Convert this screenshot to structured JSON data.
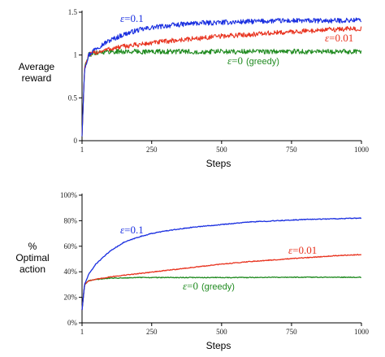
{
  "colors": {
    "eps_0_1": "#1a2fe0",
    "eps_0_01": "#e8321e",
    "eps_0": "#1f8a1f",
    "axis": "#000000"
  },
  "chart_data": [
    {
      "type": "line",
      "ylabel": "Average\nreward",
      "xlabel": "Steps",
      "xlim": [
        1,
        1000
      ],
      "ylim": [
        0,
        1.5
      ],
      "x_ticks": [
        1,
        250,
        500,
        750,
        1000
      ],
      "x_tick_labels": [
        "1",
        "250",
        "500",
        "750",
        "1000"
      ],
      "y_ticks": [
        0,
        0.5,
        1,
        1.5
      ],
      "y_tick_labels": [
        "0",
        "0.5",
        "1",
        "1.5"
      ],
      "grid": false,
      "series": [
        {
          "name": "ε=0.1",
          "annotation_var": "ε",
          "annotation_val": "=0.1",
          "color_key": "eps_0_1",
          "x": [
            1,
            10,
            25,
            50,
            100,
            150,
            200,
            250,
            300,
            400,
            500,
            600,
            700,
            800,
            900,
            1000
          ],
          "y": [
            0.05,
            0.85,
            1.0,
            1.08,
            1.17,
            1.24,
            1.29,
            1.32,
            1.34,
            1.37,
            1.38,
            1.39,
            1.4,
            1.4,
            1.4,
            1.41
          ]
        },
        {
          "name": "ε=0.01",
          "annotation_var": "ε",
          "annotation_val": "=0.01",
          "color_key": "eps_0_01",
          "x": [
            1,
            10,
            25,
            50,
            100,
            150,
            200,
            250,
            300,
            400,
            500,
            600,
            700,
            800,
            900,
            1000
          ],
          "y": [
            0.05,
            0.85,
            1.0,
            1.03,
            1.07,
            1.1,
            1.12,
            1.14,
            1.16,
            1.19,
            1.22,
            1.24,
            1.26,
            1.28,
            1.3,
            1.31
          ]
        },
        {
          "name": "ε=0 (greedy)",
          "annotation_var": "ε",
          "annotation_val": "=0",
          "annotation_suffix": "(greedy)",
          "color_key": "eps_0",
          "x": [
            1,
            10,
            25,
            50,
            100,
            200,
            300,
            400,
            500,
            600,
            700,
            800,
            900,
            1000
          ],
          "y": [
            0.05,
            0.85,
            1.0,
            1.03,
            1.04,
            1.04,
            1.04,
            1.04,
            1.04,
            1.04,
            1.04,
            1.04,
            1.04,
            1.04
          ]
        }
      ]
    },
    {
      "type": "line",
      "ylabel": "%\nOptimal\naction",
      "xlabel": "Steps",
      "xlim": [
        1,
        1000
      ],
      "ylim": [
        0,
        100
      ],
      "x_ticks": [
        1,
        250,
        500,
        750,
        1000
      ],
      "x_tick_labels": [
        "1",
        "250",
        "500",
        "750",
        "1000"
      ],
      "y_ticks": [
        0,
        20,
        40,
        60,
        80,
        100
      ],
      "y_tick_labels": [
        "0%",
        "20%",
        "40%",
        "60%",
        "80%",
        "100%"
      ],
      "grid": false,
      "series": [
        {
          "name": "ε=0.1",
          "annotation_var": "ε",
          "annotation_val": "=0.1",
          "color_key": "eps_0_1",
          "x": [
            1,
            10,
            25,
            50,
            100,
            150,
            200,
            250,
            300,
            400,
            500,
            600,
            700,
            800,
            900,
            1000
          ],
          "y": [
            10,
            30,
            38,
            46,
            56,
            63,
            67,
            70,
            72,
            75,
            77,
            79,
            80,
            81,
            81.5,
            82
          ]
        },
        {
          "name": "ε=0.01",
          "annotation_var": "ε",
          "annotation_val": "=0.01",
          "color_key": "eps_0_01",
          "x": [
            1,
            10,
            25,
            50,
            100,
            200,
            300,
            400,
            500,
            600,
            700,
            800,
            900,
            1000
          ],
          "y": [
            10,
            30,
            33,
            34,
            36,
            38.5,
            41,
            43.5,
            46,
            48,
            49.5,
            51,
            52.5,
            53.5
          ]
        },
        {
          "name": "ε=0 (greedy)",
          "annotation_var": "ε",
          "annotation_val": "=0",
          "annotation_suffix": "(greedy)",
          "color_key": "eps_0",
          "x": [
            1,
            10,
            25,
            50,
            100,
            200,
            300,
            400,
            500,
            600,
            700,
            800,
            900,
            1000
          ],
          "y": [
            10,
            30,
            33,
            34,
            35,
            35.5,
            35.5,
            35.5,
            35.5,
            35.5,
            35.7,
            35.7,
            35.7,
            35.7
          ]
        }
      ]
    }
  ]
}
